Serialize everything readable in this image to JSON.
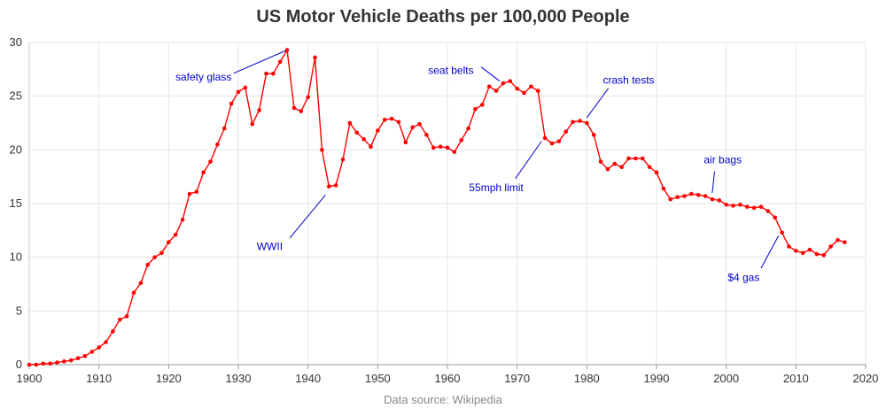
{
  "chart_data": {
    "type": "line",
    "title": "US Motor Vehicle Deaths per 100,000 People",
    "source": "Data source: Wikipedia",
    "xlabel": "",
    "ylabel": "",
    "xlim": [
      1900,
      2020
    ],
    "ylim": [
      0,
      30
    ],
    "x_ticks": [
      1900,
      1910,
      1920,
      1930,
      1940,
      1950,
      1960,
      1970,
      1980,
      1990,
      2000,
      2010,
      2020
    ],
    "y_ticks": [
      0,
      5,
      10,
      15,
      20,
      25,
      30
    ],
    "grid": true,
    "legend": "none",
    "line_color": "#ff0000",
    "annotation_color": "#0000cc",
    "series": [
      {
        "x": [
          1900,
          1901,
          1902,
          1903,
          1904,
          1905,
          1906,
          1907,
          1908,
          1909,
          1910,
          1911,
          1912,
          1913,
          1914,
          1915,
          1916,
          1917,
          1918,
          1919,
          1920,
          1921,
          1922,
          1923,
          1924,
          1925,
          1926,
          1927,
          1928,
          1929,
          1930,
          1931,
          1932,
          1933,
          1934,
          1935,
          1936,
          1937,
          1938,
          1939,
          1940,
          1941,
          1942,
          1943,
          1944,
          1945,
          1946,
          1947,
          1948,
          1949,
          1950,
          1951,
          1952,
          1953,
          1954,
          1955,
          1956,
          1957,
          1958,
          1959,
          1960,
          1961,
          1962,
          1963,
          1964,
          1965,
          1966,
          1967,
          1968,
          1969,
          1970,
          1971,
          1972,
          1973,
          1974,
          1975,
          1976,
          1977,
          1978,
          1979,
          1980,
          1981,
          1982,
          1983,
          1984,
          1985,
          1986,
          1987,
          1988,
          1989,
          1990,
          1991,
          1992,
          1993,
          1994,
          1995,
          1996,
          1997,
          1998,
          1999,
          2000,
          2001,
          2002,
          2003,
          2004,
          2005,
          2006,
          2007,
          2008,
          2009,
          2010,
          2011,
          2012,
          2013,
          2014,
          2015,
          2016,
          2017
        ],
        "values": [
          0.0,
          0.0,
          0.1,
          0.1,
          0.2,
          0.3,
          0.4,
          0.6,
          0.8,
          1.2,
          1.6,
          2.1,
          3.1,
          4.2,
          4.5,
          6.7,
          7.6,
          9.3,
          10.0,
          10.4,
          11.4,
          12.1,
          13.5,
          15.9,
          16.1,
          17.9,
          18.9,
          20.5,
          22.0,
          24.3,
          25.4,
          25.8,
          22.4,
          23.7,
          27.1,
          27.1,
          28.2,
          29.3,
          23.9,
          23.6,
          24.9,
          28.6,
          20.0,
          16.6,
          16.7,
          19.1,
          22.5,
          21.6,
          21.0,
          20.3,
          21.8,
          22.8,
          22.9,
          22.6,
          20.7,
          22.1,
          22.4,
          21.4,
          20.2,
          20.3,
          20.2,
          19.8,
          20.9,
          22.0,
          23.8,
          24.2,
          25.9,
          25.5,
          26.2,
          26.4,
          25.7,
          25.3,
          25.9,
          25.5,
          21.1,
          20.6,
          20.8,
          21.7,
          22.6,
          22.7,
          22.5,
          21.4,
          18.9,
          18.2,
          18.7,
          18.4,
          19.2,
          19.2,
          19.2,
          18.4,
          17.9,
          16.4,
          15.4,
          15.6,
          15.7,
          15.9,
          15.8,
          15.7,
          15.4,
          15.3,
          14.9,
          14.8,
          14.9,
          14.7,
          14.6,
          14.7,
          14.3,
          13.7,
          12.3,
          11.0,
          10.6,
          10.4,
          10.7,
          10.3,
          10.2,
          11.0,
          11.6,
          11.4
        ]
      }
    ],
    "annotations": [
      {
        "text": "safety glass",
        "x": 1937,
        "y": 29.3,
        "label_x": 1925,
        "label_y": 26.8,
        "anchor": "middle"
      },
      {
        "text": "WWII",
        "x": 1942.5,
        "y": 15.8,
        "label_x": 1934.5,
        "label_y": 11.0,
        "anchor": "middle"
      },
      {
        "text": "seat belts",
        "x": 1967.5,
        "y": 26.4,
        "label_x": 1960.5,
        "label_y": 27.4,
        "anchor": "middle"
      },
      {
        "text": "55mph limit",
        "x": 1973.5,
        "y": 20.8,
        "label_x": 1967,
        "label_y": 16.5,
        "anchor": "middle"
      },
      {
        "text": "crash tests",
        "x": 1980,
        "y": 23.0,
        "label_x": 1986,
        "label_y": 26.5,
        "anchor": "middle"
      },
      {
        "text": "air bags",
        "x": 1998,
        "y": 16.0,
        "label_x": 1999.5,
        "label_y": 19.1,
        "anchor": "middle"
      },
      {
        "text": "$4 gas",
        "x": 2007.5,
        "y": 12.0,
        "label_x": 2002.5,
        "label_y": 8.1,
        "anchor": "middle"
      }
    ]
  }
}
